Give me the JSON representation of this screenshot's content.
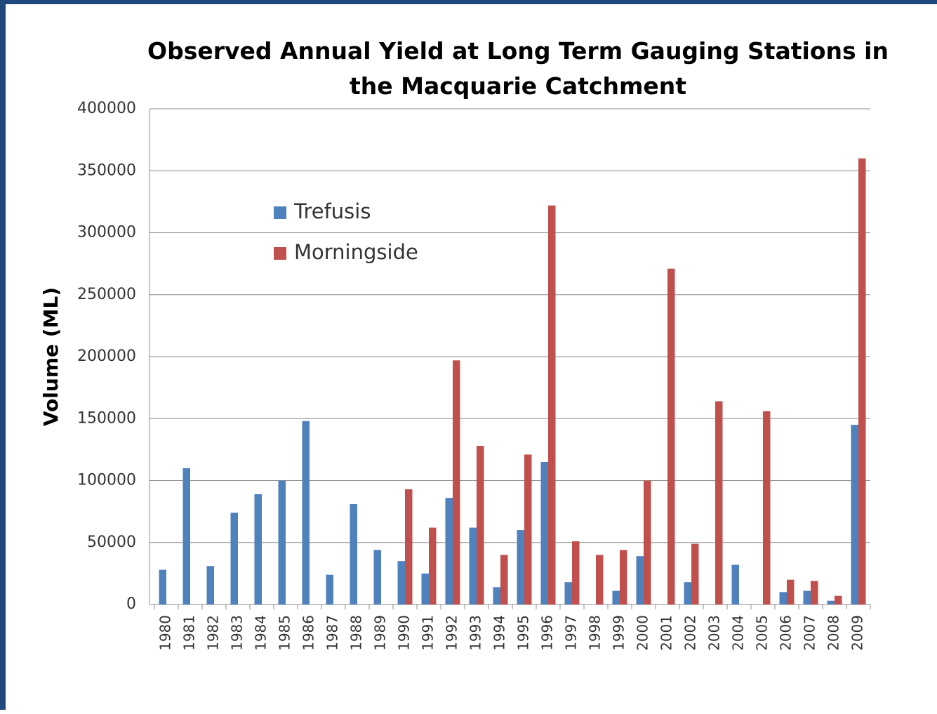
{
  "chart_data": {
    "type": "bar",
    "title": "Observed Annual Yield at Long Term Gauging Stations in the Macquarie Catchment",
    "y_label": "Volume (ML)",
    "categories": [
      "1980",
      "1981",
      "1982",
      "1983",
      "1984",
      "1985",
      "1986",
      "1987",
      "1988",
      "1989",
      "1990",
      "1991",
      "1992",
      "1993",
      "1994",
      "1995",
      "1996",
      "1997",
      "1998",
      "1999",
      "2000",
      "2001",
      "2002",
      "2003",
      "2004",
      "2005",
      "2006",
      "2007",
      "2008",
      "2009"
    ],
    "series": [
      {
        "name": "Trefusis",
        "color": "#4f81bd",
        "values": [
          28000,
          110000,
          31000,
          74000,
          89000,
          100000,
          148000,
          24000,
          81000,
          44000,
          35000,
          25000,
          86000,
          62000,
          14000,
          60000,
          115000,
          18000,
          null,
          11000,
          39000,
          null,
          18000,
          null,
          32000,
          null,
          10000,
          11000,
          3000,
          145000
        ]
      },
      {
        "name": "Morningside",
        "color": "#c0504d",
        "values": [
          null,
          null,
          null,
          null,
          null,
          null,
          null,
          null,
          null,
          null,
          93000,
          62000,
          197000,
          128000,
          40000,
          121000,
          322000,
          51000,
          40000,
          44000,
          100000,
          271000,
          49000,
          164000,
          null,
          156000,
          20000,
          19000,
          7000,
          360000
        ]
      }
    ],
    "ylim": [
      0,
      400000
    ],
    "yticks": [
      0,
      50000,
      100000,
      150000,
      200000,
      250000,
      300000,
      350000,
      400000
    ],
    "grid": true
  }
}
